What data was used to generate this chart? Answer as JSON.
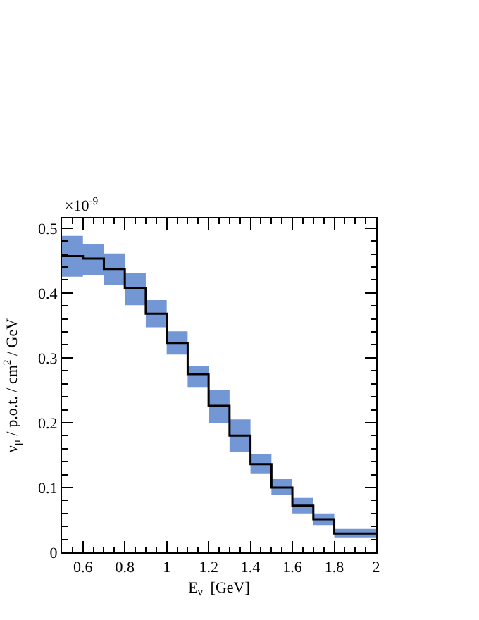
{
  "chart_data": {
    "type": "step",
    "xlabel": "E$_{ν}$  [GeV]",
    "ylabel": "ν$_{μ}$ / p.o.t. / cm$^{2}$ / GeV",
    "annotations": [
      "×10$^{-9}$"
    ],
    "x": [
      0.5,
      0.6,
      0.7,
      0.8,
      0.9,
      1.0,
      1.1,
      1.2,
      1.3,
      1.4,
      1.5,
      1.6,
      1.7,
      1.8,
      2.0
    ],
    "series": [
      {
        "color": "#000000",
        "values": [
          0.457,
          0.453,
          0.437,
          0.408,
          0.368,
          0.323,
          0.275,
          0.226,
          0.18,
          0.136,
          0.1,
          0.072,
          0.051,
          0.029,
          0.029
        ],
        "lower": [
          0.425,
          0.427,
          0.413,
          0.381,
          0.347,
          0.305,
          0.254,
          0.199,
          0.155,
          0.121,
          0.088,
          0.06,
          0.042,
          0.023,
          0.023
        ],
        "upper": [
          0.488,
          0.476,
          0.461,
          0.431,
          0.389,
          0.341,
          0.288,
          0.25,
          0.205,
          0.152,
          0.113,
          0.084,
          0.06,
          0.036,
          0.036
        ]
      }
    ],
    "xlim": [
      0.5,
      2
    ],
    "ylim": [
      0,
      0.515
    ],
    "xticks": [
      0.6,
      0.8,
      1,
      1.2,
      1.4,
      1.6,
      1.8,
      2
    ],
    "yticks": [
      0,
      0.1,
      0.2,
      0.3,
      0.4,
      0.5
    ],
    "grid": false
  }
}
